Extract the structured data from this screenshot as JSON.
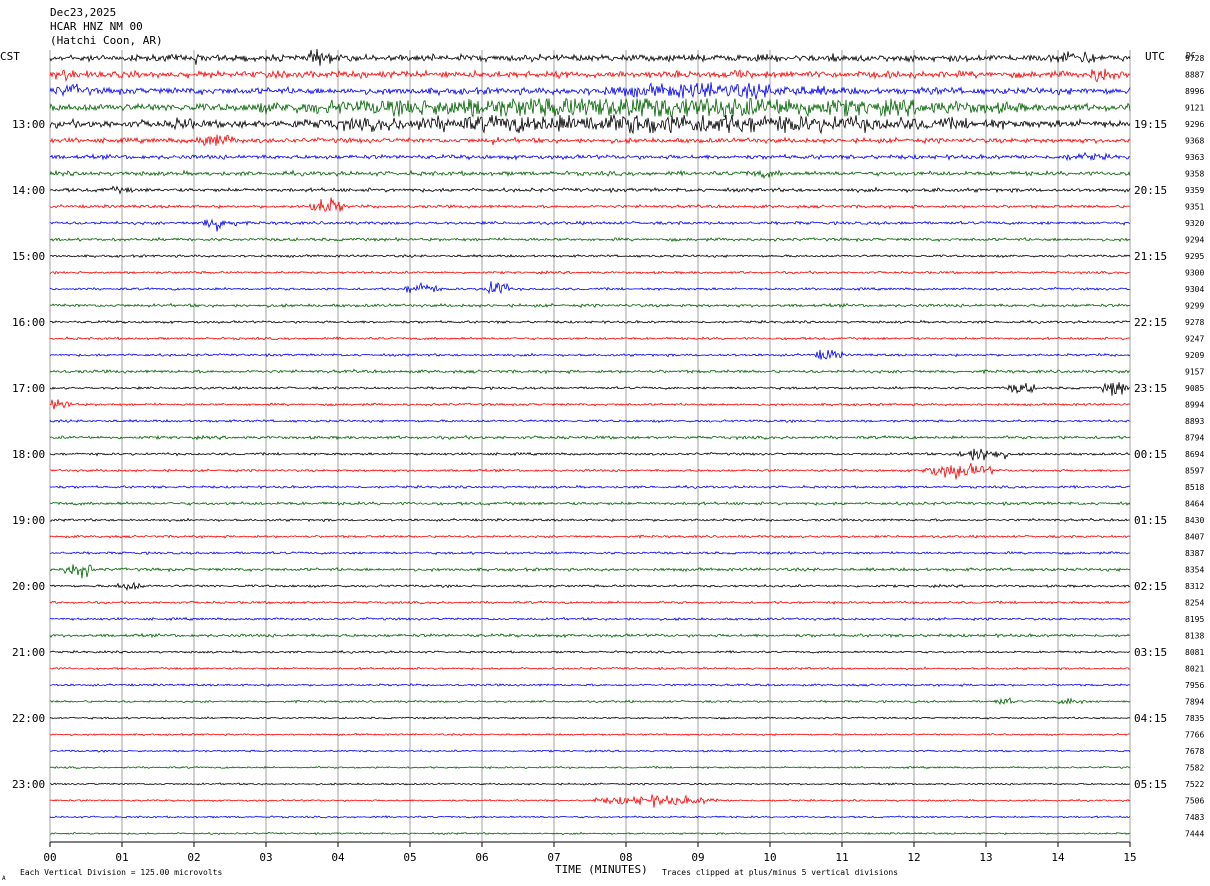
{
  "header": {
    "date": "Dec23,2025",
    "station": "HCAR HNZ NM 00",
    "location": "(Hatchi Coon, AR)"
  },
  "left_zone": "CST",
  "right_zone": "UTC",
  "dc_label": "DC",
  "footer": {
    "scale_note": "Each Vertical Division =  125.00 microvolts",
    "x_title": "TIME (MINUTES)",
    "clip_note": "Traces clipped at plus/minus 5 vertical divisions",
    "corner_mark": "A"
  },
  "colors": {
    "black": "#000000",
    "red": "#ff0000",
    "blue": "#0000ff",
    "green": "#006400",
    "grid": "#a0a0a0"
  },
  "chart_data": {
    "type": "line",
    "x_ticks": [
      "00",
      "01",
      "02",
      "03",
      "04",
      "05",
      "06",
      "07",
      "08",
      "09",
      "10",
      "11",
      "12",
      "13",
      "14",
      "15"
    ],
    "xlim": [
      0,
      15
    ],
    "color_cycle": [
      "black",
      "red",
      "blue",
      "green"
    ],
    "left_hour_labels": [
      "13:00",
      "14:00",
      "15:00",
      "16:00",
      "17:00",
      "18:00",
      "19:00",
      "20:00",
      "21:00",
      "22:00",
      "23:00"
    ],
    "right_hour_labels": [
      "19:15",
      "20:15",
      "21:15",
      "22:15",
      "23:15",
      "00:15",
      "01:15",
      "02:15",
      "03:15",
      "04:15",
      "05:15"
    ],
    "dc_values": [
      "9728",
      "8887",
      "8996",
      "9121",
      "9296",
      "9368",
      "9363",
      "9358",
      "9359",
      "9351",
      "9320",
      "9294",
      "9295",
      "9300",
      "9304",
      "9299",
      "9278",
      "9247",
      "9209",
      "9157",
      "9085",
      "8994",
      "8893",
      "8794",
      "8694",
      "8597",
      "8518",
      "8464",
      "8430",
      "8407",
      "8387",
      "8354",
      "8312",
      "8254",
      "8195",
      "8138",
      "8081",
      "8021",
      "7956",
      "7894",
      "7835",
      "7766",
      "7678",
      "7582",
      "7522",
      "7506",
      "7483",
      "7444"
    ],
    "noise_levels": [
      2.2,
      2.2,
      2.2,
      2.5,
      2.5,
      1.6,
      1.4,
      1.4,
      1.2,
      1.0,
      1.0,
      1.0,
      0.8,
      0.8,
      0.8,
      1.0,
      0.8,
      0.8,
      0.8,
      1.0,
      0.8,
      0.8,
      0.8,
      1.0,
      0.8,
      0.8,
      0.8,
      1.0,
      0.8,
      0.8,
      0.8,
      1.0,
      0.8,
      0.8,
      0.8,
      1.0,
      0.7,
      0.7,
      0.7,
      0.7,
      0.6,
      0.6,
      0.6,
      0.6,
      0.6,
      0.6,
      0.6,
      0.6
    ],
    "bursts": [
      {
        "trace": 0,
        "start": 3.6,
        "end": 3.9,
        "amp": 8
      },
      {
        "trace": 0,
        "start": 13.9,
        "end": 14.6,
        "amp": 6
      },
      {
        "trace": 0,
        "start": 1.9,
        "end": 2.2,
        "amp": 4
      },
      {
        "trace": 0,
        "start": 10.7,
        "end": 11.0,
        "amp": 4
      },
      {
        "trace": 1,
        "start": 0.0,
        "end": 0.4,
        "amp": 5
      },
      {
        "trace": 1,
        "start": 14.4,
        "end": 14.8,
        "amp": 7
      },
      {
        "trace": 1,
        "start": 9.4,
        "end": 9.8,
        "amp": 4
      },
      {
        "trace": 2,
        "start": 0.0,
        "end": 0.6,
        "amp": 5
      },
      {
        "trace": 2,
        "start": 7.2,
        "end": 11.2,
        "amp": 6
      },
      {
        "trace": 2,
        "start": 12.1,
        "end": 12.4,
        "amp": 4
      },
      {
        "trace": 3,
        "start": 2.8,
        "end": 13.5,
        "amp": 9
      },
      {
        "trace": 4,
        "start": 1.7,
        "end": 2.0,
        "amp": 7
      },
      {
        "trace": 4,
        "start": 3.3,
        "end": 13.3,
        "amp": 8
      },
      {
        "trace": 5,
        "start": 2.0,
        "end": 2.6,
        "amp": 6
      },
      {
        "trace": 5,
        "start": 6.0,
        "end": 6.3,
        "amp": 3
      },
      {
        "trace": 6,
        "start": 13.9,
        "end": 14.8,
        "amp": 3
      },
      {
        "trace": 7,
        "start": 9.5,
        "end": 10.3,
        "amp": 3
      },
      {
        "trace": 8,
        "start": 0.6,
        "end": 1.3,
        "amp": 2.5
      },
      {
        "trace": 8,
        "start": 12.1,
        "end": 12.5,
        "amp": 2
      },
      {
        "trace": 9,
        "start": 3.6,
        "end": 4.1,
        "amp": 7
      },
      {
        "trace": 10,
        "start": 2.1,
        "end": 2.6,
        "amp": 6
      },
      {
        "trace": 14,
        "start": 4.9,
        "end": 5.4,
        "amp": 5
      },
      {
        "trace": 14,
        "start": 6.0,
        "end": 6.4,
        "amp": 7
      },
      {
        "trace": 18,
        "start": 10.6,
        "end": 11.0,
        "amp": 5
      },
      {
        "trace": 20,
        "start": 13.3,
        "end": 13.7,
        "amp": 5
      },
      {
        "trace": 20,
        "start": 14.6,
        "end": 15.0,
        "amp": 6
      },
      {
        "trace": 21,
        "start": 0.0,
        "end": 0.3,
        "amp": 5
      },
      {
        "trace": 24,
        "start": 12.6,
        "end": 13.3,
        "amp": 6
      },
      {
        "trace": 25,
        "start": 12.1,
        "end": 13.1,
        "amp": 6
      },
      {
        "trace": 31,
        "start": 0.2,
        "end": 0.6,
        "amp": 7
      },
      {
        "trace": 32,
        "start": 0.9,
        "end": 1.3,
        "amp": 4
      },
      {
        "trace": 39,
        "start": 13.1,
        "end": 13.4,
        "amp": 3
      },
      {
        "trace": 39,
        "start": 14.0,
        "end": 14.4,
        "amp": 3
      },
      {
        "trace": 45,
        "start": 7.5,
        "end": 9.3,
        "amp": 4
      }
    ]
  }
}
